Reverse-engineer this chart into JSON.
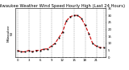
{
  "title": "Milwaukee Weather Wind Speed Hourly High (Last 24 Hours)",
  "ylabel_left": "Milwaukee\nWI",
  "x_values": [
    0,
    1,
    2,
    3,
    4,
    5,
    6,
    7,
    8,
    9,
    10,
    11,
    12,
    13,
    14,
    15,
    16,
    17,
    18,
    19,
    20,
    21,
    22,
    23
  ],
  "y_values": [
    5,
    4,
    4,
    5,
    4,
    5,
    5,
    6,
    6,
    8,
    10,
    14,
    18,
    26,
    29,
    30,
    30,
    28,
    23,
    17,
    10,
    8,
    7,
    7
  ],
  "ylim": [
    0,
    35
  ],
  "xlim": [
    -0.5,
    23.5
  ],
  "line_color": "#cc0000",
  "marker_color": "#000000",
  "bg_color": "#ffffff",
  "plot_bg_color": "#ffffff",
  "grid_color": "#999999",
  "title_fontsize": 3.8,
  "ylabel_fontsize": 3.0,
  "tick_fontsize": 2.8,
  "ytick_values": [
    0,
    5,
    10,
    15,
    20,
    25,
    30,
    35
  ],
  "xtick_step": 3,
  "line_width": 0.8,
  "marker_size": 1.0,
  "grid_linewidth": 0.35,
  "grid_positions": [
    0,
    3,
    6,
    9,
    12,
    15,
    18,
    21,
    23
  ]
}
